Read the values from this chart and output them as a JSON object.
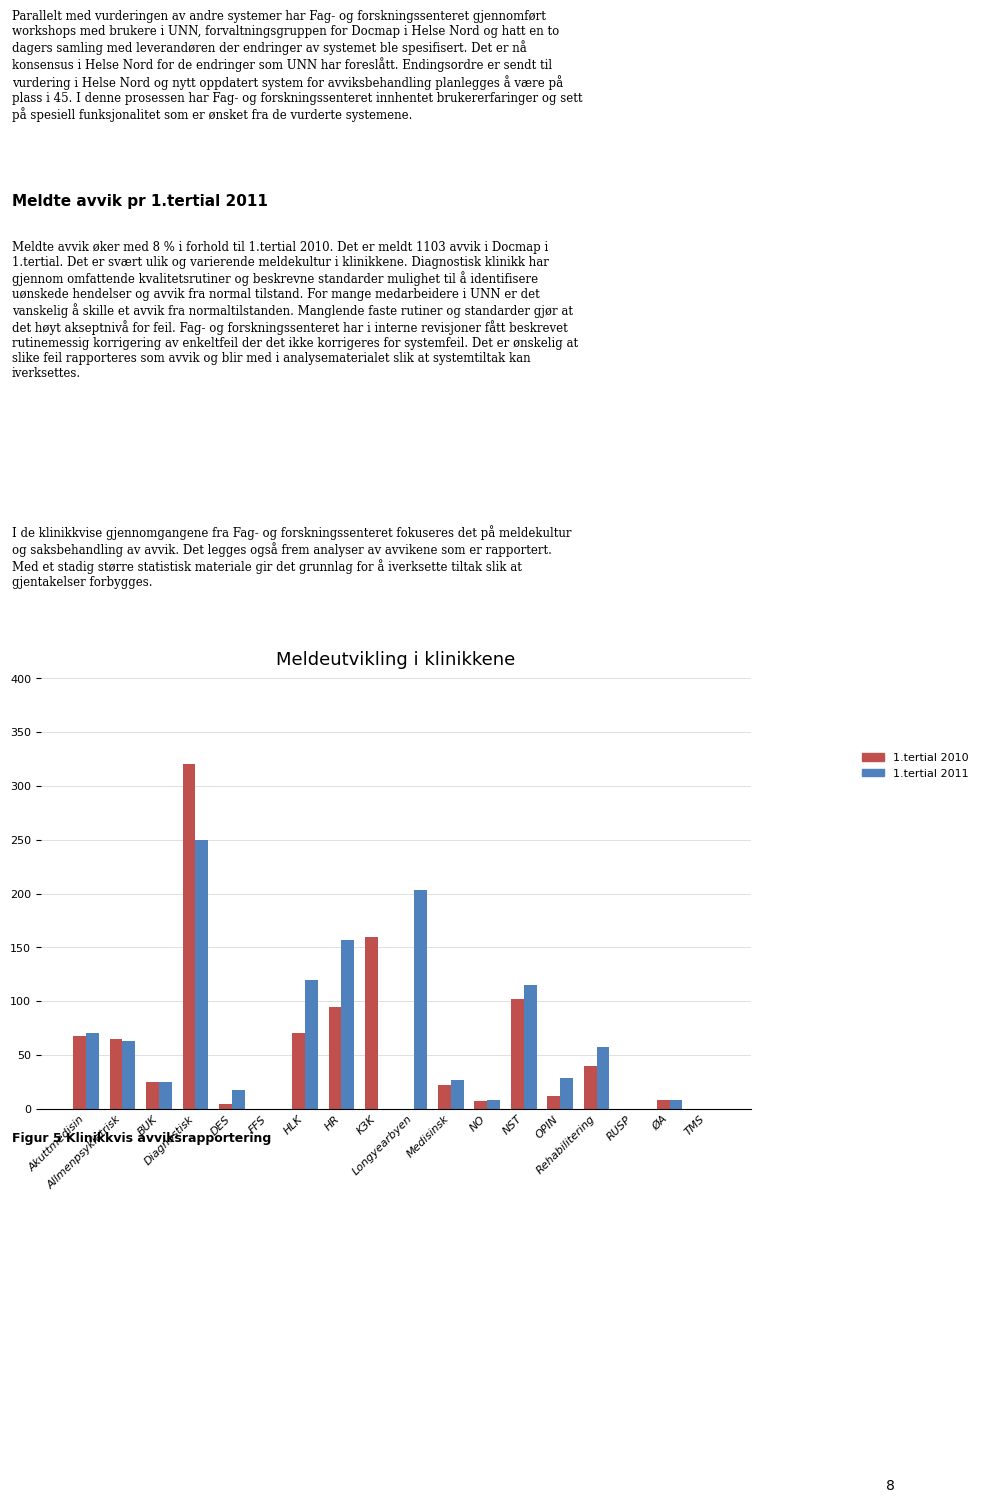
{
  "title": "Meldeutvikling i klinikkene",
  "categories": [
    "Akuttmedisin",
    "Allmenpsykiatrisk",
    "BUK",
    "Diagnostisk",
    "DES",
    "FFS",
    "HLK",
    "HR",
    "K3K",
    "Longyearbyen",
    "Medisinsk",
    "NO",
    "NST",
    "OPIN",
    "Rehabilitering",
    "RUSP",
    "ØA",
    "TMS"
  ],
  "values_2010": [
    68,
    65,
    25,
    320,
    4,
    0,
    70,
    95,
    160,
    0,
    22,
    7,
    102,
    12,
    40,
    0,
    8,
    0
  ],
  "values_2011": [
    70,
    63,
    25,
    250,
    17,
    0,
    120,
    157,
    0,
    203,
    27,
    8,
    115,
    29,
    57,
    0,
    8,
    0
  ],
  "color_2010": "#C0504D",
  "color_2011": "#4F81BD",
  "legend_2010": "1.tertial 2010",
  "legend_2011": "1.tertial 2011",
  "ylabel": "",
  "ylim": [
    0,
    400
  ],
  "yticks": [
    0,
    50,
    100,
    150,
    200,
    250,
    300,
    350,
    400
  ],
  "figcaption": "Figur 5 Klinikkvis avviksrapportering",
  "chart_bg": "#FFFFFF",
  "page_bg": "#FFFFFF"
}
